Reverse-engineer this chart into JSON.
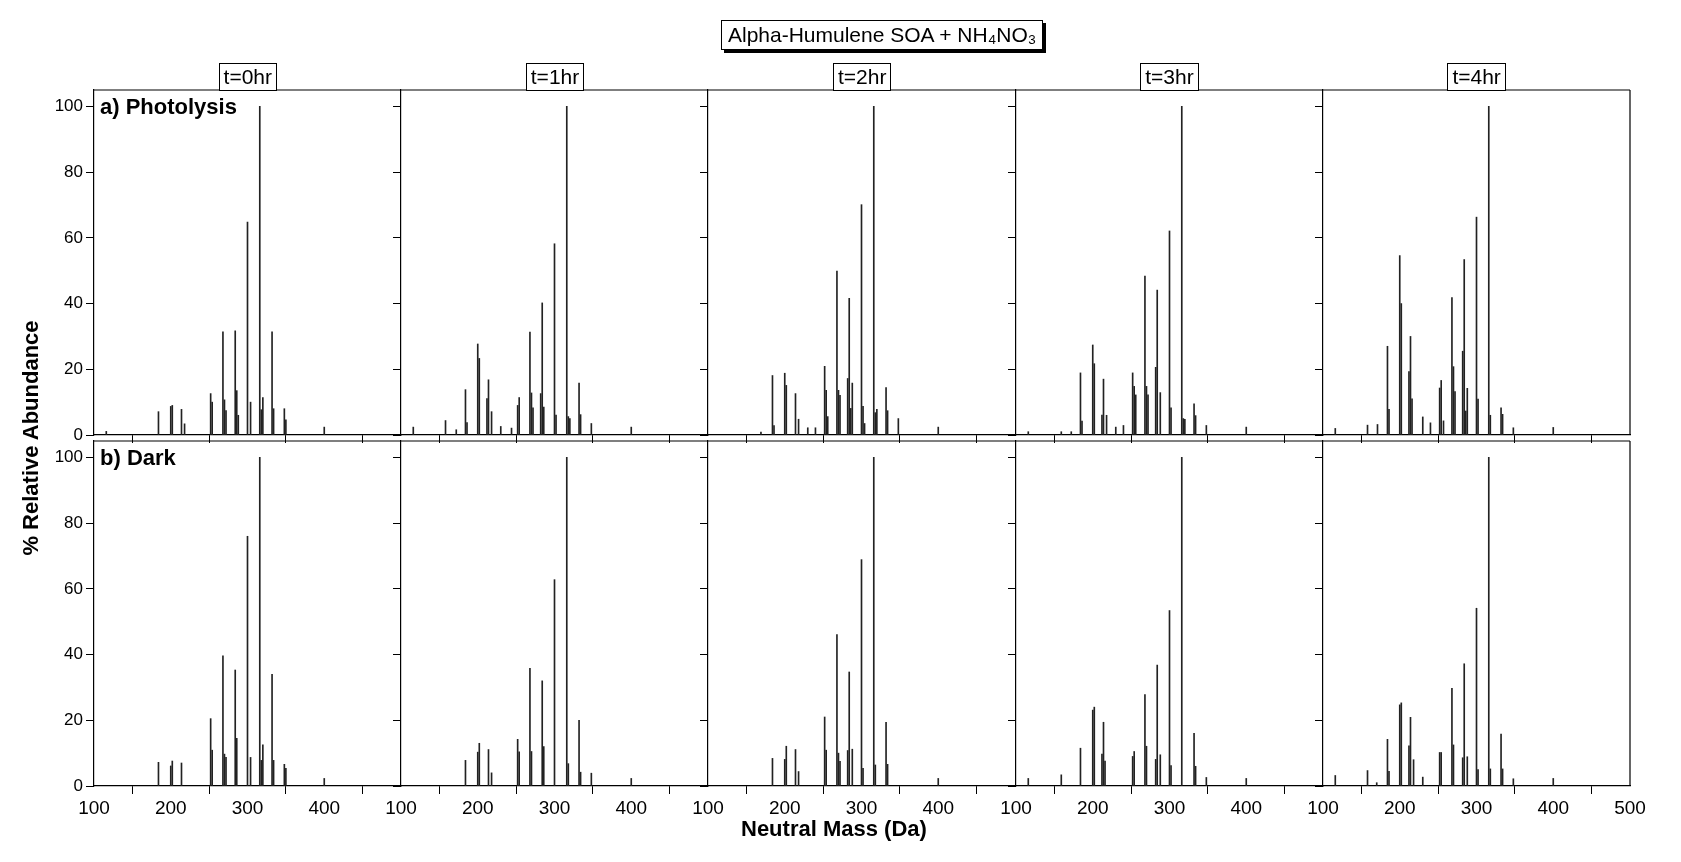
{
  "chart_data": [
    {
      "type": "bar",
      "subtitle": "t=0hr",
      "ylabel": "% Relative Abundance",
      "annotations": [
        "a) Photolysis"
      ],
      "color": "#222222",
      "tick_labels": "y",
      "xlim": [
        100,
        500
      ],
      "xticks": [
        100,
        200,
        300,
        400
      ],
      "ylim": [
        0,
        105
      ],
      "yticks": [
        0,
        20,
        40,
        60,
        80,
        100
      ],
      "x": [
        116,
        184,
        200,
        202,
        214,
        218,
        252,
        254,
        268,
        270,
        272,
        284,
        286,
        288,
        300,
        304,
        316,
        318,
        320,
        332,
        334,
        348,
        350,
        400
      ],
      "values": [
        1.1,
        7.1,
        8.7,
        9.0,
        7.8,
        3.4,
        12.6,
        10,
        31.4,
        10.7,
        7.4,
        31.7,
        13.5,
        6,
        64.8,
        10,
        100,
        7.7,
        11.4,
        31.4,
        8,
        8,
        4.6,
        2.4
      ]
    },
    {
      "type": "bar",
      "subtitle": "t=1hr",
      "color": "#222222",
      "tick_labels": false,
      "xlim": [
        100,
        500
      ],
      "xticks": [
        100,
        200,
        300,
        400
      ],
      "ylim": [
        0,
        105
      ],
      "yticks": [
        0,
        20,
        40,
        60,
        80,
        100
      ],
      "x": [
        116,
        158,
        172,
        184,
        186,
        200,
        202,
        212,
        214,
        218,
        230,
        244,
        252,
        254,
        268,
        270,
        272,
        282,
        284,
        286,
        300,
        302,
        316,
        318,
        320,
        332,
        334,
        348,
        400
      ],
      "values": [
        2.4,
        4.4,
        1.6,
        13.8,
        3.8,
        27.7,
        23.3,
        11.1,
        16.8,
        7.1,
        2.6,
        2.1,
        9,
        11.4,
        31.3,
        12.8,
        8.3,
        12.6,
        40.2,
        8.5,
        58.2,
        6.1,
        100,
        5.6,
        5,
        15.8,
        6.2,
        3.5,
        2.4
      ]
    },
    {
      "type": "bar",
      "title": "Alpha-Humulene SOA + NH₄NO₃",
      "subtitle": "t=2hr",
      "color": "#222222",
      "tick_labels": false,
      "xlim": [
        100,
        500
      ],
      "xticks": [
        100,
        200,
        300,
        400
      ],
      "ylim": [
        0,
        105
      ],
      "yticks": [
        0,
        20,
        40,
        60,
        80,
        100
      ],
      "x": [
        169,
        184,
        186,
        200,
        202,
        214,
        218,
        230,
        240,
        252,
        254,
        256,
        268,
        270,
        272,
        282,
        284,
        286,
        288,
        300,
        302,
        304,
        316,
        318,
        320,
        332,
        334,
        348,
        400
      ],
      "values": [
        0.9,
        18.1,
        2.9,
        18.8,
        15.1,
        12.6,
        4.8,
        2.2,
        2.2,
        20.9,
        13.6,
        5.6,
        49.9,
        13.6,
        12.1,
        17.2,
        41.6,
        8.1,
        15.8,
        70.1,
        8.7,
        3.5,
        100,
        6.8,
        7.8,
        14.4,
        7.4,
        5,
        2.4
      ]
    },
    {
      "type": "bar",
      "subtitle": "t=3hr",
      "color": "#222222",
      "tick_labels": false,
      "xlim": [
        100,
        500
      ],
      "xticks": [
        100,
        200,
        300,
        400
      ],
      "ylim": [
        0,
        105
      ],
      "yticks": [
        0,
        20,
        40,
        60,
        80,
        100
      ],
      "x": [
        116,
        159,
        172,
        184,
        186,
        200,
        202,
        212,
        214,
        218,
        230,
        240,
        252,
        254,
        256,
        268,
        270,
        272,
        282,
        284,
        288,
        300,
        302,
        316,
        318,
        320,
        332,
        334,
        348,
        400
      ],
      "values": [
        1,
        1,
        1,
        18.9,
        4.2,
        27.4,
        21.7,
        6.1,
        17,
        6,
        2.4,
        2.9,
        18.9,
        14.8,
        12.2,
        48.4,
        14.8,
        12.2,
        20.6,
        44.1,
        12.9,
        62.1,
        8.3,
        100,
        5,
        4.8,
        9.5,
        5.9,
        2.9,
        2.4
      ]
    },
    {
      "type": "bar",
      "subtitle": "t=4hr",
      "color": "#222222",
      "tick_labels": false,
      "xlim": [
        100,
        500
      ],
      "xticks": [
        100,
        200,
        300,
        400,
        500
      ],
      "ylim": [
        0,
        105
      ],
      "yticks": [
        0,
        20,
        40,
        60,
        80,
        100
      ],
      "x": [
        116,
        158,
        171,
        184,
        186,
        200,
        202,
        212,
        214,
        216,
        230,
        240,
        252,
        254,
        257,
        268,
        270,
        272,
        282,
        284,
        286,
        288,
        300,
        302,
        316,
        318,
        332,
        334,
        348,
        400
      ],
      "values": [
        2,
        3,
        3.2,
        27,
        7.8,
        54.6,
        40,
        19.3,
        30,
        11,
        5.5,
        3.7,
        14.3,
        16.6,
        4.3,
        41.8,
        20.8,
        13.2,
        25.5,
        53.4,
        7.3,
        14.2,
        66.3,
        10.9,
        100,
        6,
        8.3,
        6.3,
        2.2,
        2.3
      ]
    },
    {
      "type": "bar",
      "annotations": [
        "b) Dark"
      ],
      "color": "#222222",
      "xlim": [
        100,
        500
      ],
      "xticks": [
        100,
        200,
        300,
        400
      ],
      "ylim": [
        0,
        105
      ],
      "yticks": [
        0,
        20,
        40,
        60,
        80,
        100
      ],
      "x": [
        184,
        200,
        202,
        214,
        252,
        254,
        268,
        270,
        272,
        284,
        286,
        300,
        304,
        316,
        318,
        320,
        332,
        334,
        348,
        350,
        400
      ],
      "values": [
        7.2,
        6.1,
        7.6,
        7,
        20.5,
        10.9,
        39.6,
        9.7,
        8.7,
        35.3,
        14.5,
        76,
        8.7,
        100,
        7.8,
        12.5,
        34,
        7.8,
        6.6,
        5.4,
        2.3
      ]
    },
    {
      "type": "bar",
      "color": "#222222",
      "tick_labels": "x",
      "xlim": [
        100,
        500
      ],
      "xticks": [
        100,
        200,
        300,
        400
      ],
      "ylim": [
        0,
        105
      ],
      "yticks": [
        0,
        20,
        40,
        60,
        80,
        100
      ],
      "x": [
        184,
        200,
        202,
        214,
        218,
        252,
        254,
        268,
        270,
        284,
        286,
        300,
        316,
        318,
        332,
        334,
        348,
        400
      ],
      "values": [
        7.8,
        10.3,
        13,
        11.1,
        4,
        14.2,
        10.4,
        35.8,
        10.5,
        32,
        12,
        62.8,
        100,
        6.8,
        20,
        4.2,
        3.9,
        2.3
      ]
    },
    {
      "type": "bar",
      "xlabel": "Neutral Mass (Da)",
      "color": "#222222",
      "tick_labels": "x",
      "xlim": [
        100,
        500
      ],
      "xticks": [
        100,
        200,
        300,
        400
      ],
      "ylim": [
        0,
        105
      ],
      "yticks": [
        0,
        20,
        40,
        60,
        80,
        100
      ],
      "x": [
        184,
        200,
        202,
        214,
        218,
        252,
        254,
        268,
        270,
        272,
        282,
        284,
        288,
        300,
        302,
        316,
        318,
        332,
        334,
        400
      ],
      "values": [
        8.4,
        8.1,
        12.1,
        11.1,
        4.4,
        21,
        10.9,
        46.1,
        10,
        7.5,
        10.8,
        34.7,
        11.2,
        68.9,
        5.4,
        100,
        6.4,
        19.4,
        6.6,
        2.3
      ]
    },
    {
      "type": "bar",
      "color": "#222222",
      "tick_labels": "x",
      "xlim": [
        100,
        500
      ],
      "xticks": [
        100,
        200,
        300,
        400
      ],
      "ylim": [
        0,
        105
      ],
      "yticks": [
        0,
        20,
        40,
        60,
        80,
        100
      ],
      "x": [
        116,
        159,
        184,
        200,
        202,
        212,
        214,
        216,
        252,
        254,
        268,
        270,
        282,
        284,
        288,
        300,
        302,
        316,
        332,
        334,
        348,
        400
      ],
      "values": [
        2.3,
        3.4,
        11.5,
        23.1,
        24,
        9.7,
        19.4,
        7.6,
        9,
        10.5,
        27.8,
        12.1,
        8.1,
        36.8,
        9.5,
        53.4,
        6.2,
        100,
        16,
        6,
        2.6,
        2.3
      ]
    },
    {
      "type": "bar",
      "color": "#222222",
      "tick_labels": "x",
      "xlim": [
        100,
        500
      ],
      "xticks": [
        100,
        200,
        300,
        400,
        500
      ],
      "ylim": [
        0,
        105
      ],
      "yticks": [
        0,
        20,
        40,
        60,
        80,
        100
      ],
      "x": [
        116,
        158,
        170,
        184,
        186,
        200,
        202,
        212,
        214,
        218,
        230,
        252,
        254,
        268,
        270,
        282,
        284,
        288,
        300,
        302,
        316,
        318,
        332,
        334,
        348,
        400
      ],
      "values": [
        3.2,
        4.7,
        1,
        14.2,
        4.5,
        24.7,
        25.3,
        12.2,
        20.9,
        8,
        2.7,
        10.2,
        10.2,
        29.7,
        12.5,
        8.6,
        37.2,
        8.9,
        54.1,
        5,
        100,
        5.2,
        15.8,
        5.2,
        2.2,
        2.3
      ]
    }
  ]
}
